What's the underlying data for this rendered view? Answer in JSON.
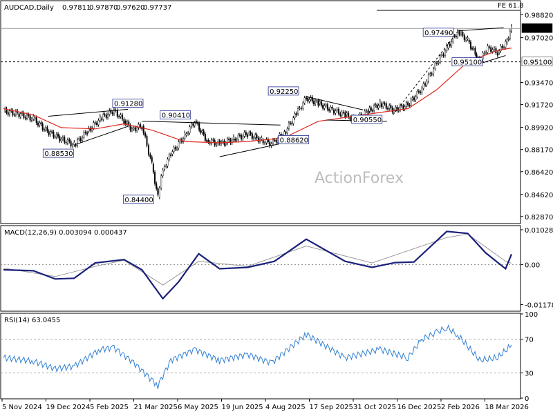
{
  "chart_data": [
    {
      "type": "candlestick",
      "title": "AUDCAD,Daily",
      "ohlc": {
        "open": "0.97811",
        "high": "0.97870",
        "low": "0.97620",
        "close": "0.97737"
      },
      "ylim": [
        0.8237,
        0.9988
      ],
      "y_ticks": [
        "0.98820",
        "0.97020",
        "0.95100",
        "0.93470",
        "0.91720",
        "0.89920",
        "0.88170",
        "0.86420",
        "0.84620",
        "0.82870"
      ],
      "x_tick_labels": [
        "5 Nov 2024",
        "19 Dec 2024",
        "5 Feb 2025",
        "21 Mar 2025",
        "6 May 2025",
        "19 Jun 2025",
        "4 Aug 2025",
        "17 Sep 2025",
        "31 Oct 2025",
        "16 Dec 2025",
        "2 Feb 2026",
        "18 Mar 2026"
      ],
      "close_series": [
        {
          "date": "2024-11-05",
          "value": 0.912
        },
        {
          "date": "2024-11-19",
          "value": 0.91
        },
        {
          "date": "2024-12-05",
          "value": 0.906
        },
        {
          "date": "2024-12-19",
          "value": 0.896
        },
        {
          "date": "2025-01-02",
          "value": 0.89
        },
        {
          "date": "2025-01-15",
          "value": 0.8853
        },
        {
          "date": "2025-01-28",
          "value": 0.896
        },
        {
          "date": "2025-02-10",
          "value": 0.906
        },
        {
          "date": "2025-02-24",
          "value": 0.9128
        },
        {
          "date": "2025-03-06",
          "value": 0.904
        },
        {
          "date": "2025-03-14",
          "value": 0.898
        },
        {
          "date": "2025-03-24",
          "value": 0.9
        },
        {
          "date": "2025-04-03",
          "value": 0.87
        },
        {
          "date": "2025-04-09",
          "value": 0.844
        },
        {
          "date": "2025-04-14",
          "value": 0.866
        },
        {
          "date": "2025-04-22",
          "value": 0.878
        },
        {
          "date": "2025-05-06",
          "value": 0.893
        },
        {
          "date": "2025-05-16",
          "value": 0.9041
        },
        {
          "date": "2025-05-28",
          "value": 0.889
        },
        {
          "date": "2025-06-10",
          "value": 0.886
        },
        {
          "date": "2025-06-24",
          "value": 0.89
        },
        {
          "date": "2025-07-08",
          "value": 0.894
        },
        {
          "date": "2025-07-22",
          "value": 0.889
        },
        {
          "date": "2025-08-01",
          "value": 0.8862
        },
        {
          "date": "2025-08-14",
          "value": 0.895
        },
        {
          "date": "2025-08-26",
          "value": 0.91
        },
        {
          "date": "2025-09-05",
          "value": 0.9225
        },
        {
          "date": "2025-09-17",
          "value": 0.918
        },
        {
          "date": "2025-10-01",
          "value": 0.913
        },
        {
          "date": "2025-10-14",
          "value": 0.909
        },
        {
          "date": "2025-10-24",
          "value": 0.9055
        },
        {
          "date": "2025-11-06",
          "value": 0.912
        },
        {
          "date": "2025-11-18",
          "value": 0.918
        },
        {
          "date": "2025-12-02",
          "value": 0.913
        },
        {
          "date": "2025-12-16",
          "value": 0.917
        },
        {
          "date": "2025-12-30",
          "value": 0.93
        },
        {
          "date": "2026-01-14",
          "value": 0.95
        },
        {
          "date": "2026-01-24",
          "value": 0.962
        },
        {
          "date": "2026-02-04",
          "value": 0.9749
        },
        {
          "date": "2026-02-14",
          "value": 0.968
        },
        {
          "date": "2026-02-26",
          "value": 0.951
        },
        {
          "date": "2026-03-06",
          "value": 0.963
        },
        {
          "date": "2026-03-16",
          "value": 0.958
        },
        {
          "date": "2026-03-24",
          "value": 0.966
        },
        {
          "date": "2026-03-30",
          "value": 0.97737
        }
      ],
      "sma_series": [
        {
          "date": "2024-11-05",
          "value": 0.914
        },
        {
          "date": "2024-12-05",
          "value": 0.909
        },
        {
          "date": "2025-01-02",
          "value": 0.899
        },
        {
          "date": "2025-02-05",
          "value": 0.898
        },
        {
          "date": "2025-03-06",
          "value": 0.902
        },
        {
          "date": "2025-04-03",
          "value": 0.897
        },
        {
          "date": "2025-05-06",
          "value": 0.888
        },
        {
          "date": "2025-06-10",
          "value": 0.887
        },
        {
          "date": "2025-07-08",
          "value": 0.888
        },
        {
          "date": "2025-08-14",
          "value": 0.891
        },
        {
          "date": "2025-09-17",
          "value": 0.904
        },
        {
          "date": "2025-10-14",
          "value": 0.907
        },
        {
          "date": "2025-11-18",
          "value": 0.911
        },
        {
          "date": "2025-12-16",
          "value": 0.914
        },
        {
          "date": "2026-01-14",
          "value": 0.929
        },
        {
          "date": "2026-02-14",
          "value": 0.951
        },
        {
          "date": "2026-03-16",
          "value": 0.96
        },
        {
          "date": "2026-03-30",
          "value": 0.962
        }
      ],
      "annotations": [
        {
          "label": "0.91280",
          "date": "2025-02-24",
          "value": 0.9128
        },
        {
          "label": "0.88530",
          "date": "2025-01-15",
          "value": 0.8853
        },
        {
          "label": "0.84400",
          "date": "2025-04-09",
          "value": 0.844
        },
        {
          "label": "0.90410",
          "date": "2025-05-16",
          "value": 0.9041
        },
        {
          "label": "0.88620",
          "date": "2025-08-01",
          "value": 0.8862
        },
        {
          "label": "0.92250",
          "date": "2025-09-05",
          "value": 0.9225
        },
        {
          "label": "0.90550",
          "date": "2025-10-24",
          "value": 0.9055
        },
        {
          "label": "0.97490",
          "date": "2026-02-04",
          "value": 0.9749
        },
        {
          "label": "0.95100",
          "date": "2026-02-26",
          "value": 0.951
        }
      ],
      "horizontal_lines": [
        {
          "label": "0.95100",
          "value": 0.951,
          "style": "dashed"
        },
        {
          "label": "0.97737",
          "value": 0.97737,
          "style": "current"
        }
      ],
      "fe_label": "FE 61.8",
      "watermark": "ActionForex"
    },
    {
      "type": "line",
      "title": "MACD(12,26,9) 0.003094 0.000437",
      "ylim": [
        -0.0135,
        0.0113
      ],
      "y_ticks": [
        "0.010286",
        "0.00",
        "-0.011786"
      ],
      "macd_series": [
        {
          "date": "2024-11-05",
          "value": -0.0015
        },
        {
          "date": "2024-12-05",
          "value": -0.0018
        },
        {
          "date": "2024-12-27",
          "value": -0.0042
        },
        {
          "date": "2025-01-15",
          "value": -0.004
        },
        {
          "date": "2025-02-05",
          "value": 0.0005
        },
        {
          "date": "2025-03-06",
          "value": 0.0015
        },
        {
          "date": "2025-03-24",
          "value": -0.0015
        },
        {
          "date": "2025-04-14",
          "value": -0.01
        },
        {
          "date": "2025-04-30",
          "value": -0.005
        },
        {
          "date": "2025-05-20",
          "value": 0.0032
        },
        {
          "date": "2025-06-10",
          "value": -0.0012
        },
        {
          "date": "2025-07-08",
          "value": -0.0008
        },
        {
          "date": "2025-08-04",
          "value": 0.001
        },
        {
          "date": "2025-09-05",
          "value": 0.0075
        },
        {
          "date": "2025-10-14",
          "value": 0.001
        },
        {
          "date": "2025-11-10",
          "value": -0.0008
        },
        {
          "date": "2025-12-03",
          "value": 0.0006
        },
        {
          "date": "2025-12-22",
          "value": 0.0008
        },
        {
          "date": "2026-01-24",
          "value": 0.0098
        },
        {
          "date": "2026-02-14",
          "value": 0.0092
        },
        {
          "date": "2026-03-04",
          "value": 0.0035
        },
        {
          "date": "2026-03-24",
          "value": -0.0012
        },
        {
          "date": "2026-03-30",
          "value": 0.003094
        }
      ],
      "signal_series": [
        {
          "date": "2024-11-05",
          "value": -0.001
        },
        {
          "date": "2024-12-27",
          "value": -0.0035
        },
        {
          "date": "2025-02-05",
          "value": -0.0005
        },
        {
          "date": "2025-03-06",
          "value": 0.0013
        },
        {
          "date": "2025-04-14",
          "value": -0.006
        },
        {
          "date": "2025-05-20",
          "value": 0.001
        },
        {
          "date": "2025-07-08",
          "value": -0.0005
        },
        {
          "date": "2025-09-05",
          "value": 0.0055
        },
        {
          "date": "2025-11-10",
          "value": 0.0005
        },
        {
          "date": "2026-01-24",
          "value": 0.008
        },
        {
          "date": "2026-02-14",
          "value": 0.009
        },
        {
          "date": "2026-03-24",
          "value": 0.001
        },
        {
          "date": "2026-03-30",
          "value": 0.000437
        }
      ]
    },
    {
      "type": "line",
      "title": "RSI(14) 63.0455",
      "ylim": [
        0,
        100
      ],
      "y_ticks": [
        "100",
        "70",
        "30",
        "0"
      ],
      "levels": [
        70,
        30
      ],
      "rsi_series": [
        {
          "date": "2024-11-05",
          "value": 48
        },
        {
          "date": "2024-12-05",
          "value": 44
        },
        {
          "date": "2024-12-27",
          "value": 35
        },
        {
          "date": "2025-01-15",
          "value": 38
        },
        {
          "date": "2025-02-10",
          "value": 58
        },
        {
          "date": "2025-02-24",
          "value": 60
        },
        {
          "date": "2025-03-14",
          "value": 44
        },
        {
          "date": "2025-04-09",
          "value": 15
        },
        {
          "date": "2025-04-22",
          "value": 45
        },
        {
          "date": "2025-05-16",
          "value": 58
        },
        {
          "date": "2025-06-10",
          "value": 45
        },
        {
          "date": "2025-07-08",
          "value": 52
        },
        {
          "date": "2025-08-01",
          "value": 42
        },
        {
          "date": "2025-09-05",
          "value": 76
        },
        {
          "date": "2025-10-14",
          "value": 48
        },
        {
          "date": "2025-11-18",
          "value": 58
        },
        {
          "date": "2025-12-16",
          "value": 48
        },
        {
          "date": "2025-12-30",
          "value": 70
        },
        {
          "date": "2026-01-14",
          "value": 78
        },
        {
          "date": "2026-01-24",
          "value": 84
        },
        {
          "date": "2026-02-04",
          "value": 75
        },
        {
          "date": "2026-02-26",
          "value": 45
        },
        {
          "date": "2026-03-16",
          "value": 48
        },
        {
          "date": "2026-03-30",
          "value": 63.0455
        }
      ]
    }
  ]
}
